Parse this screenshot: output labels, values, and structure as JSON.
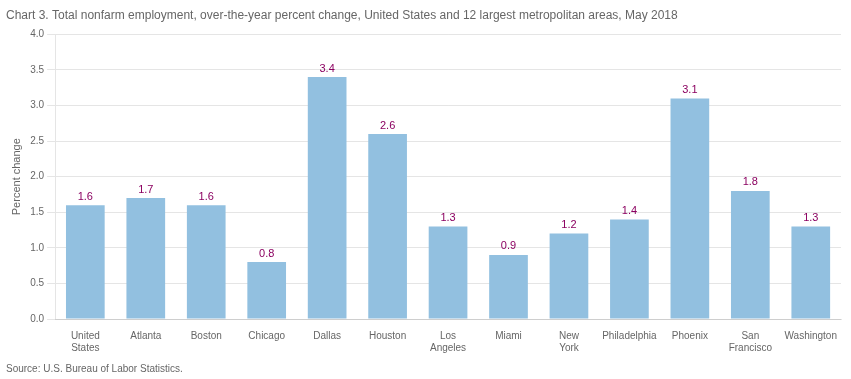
{
  "chart_data": {
    "type": "bar",
    "title": "Chart 3. Total nonfarm employment, over-the-year percent change, United States and 12 largest metropolitan areas, May 2018",
    "ylabel": "Percent change",
    "source": "Source: U.S. Bureau of Labor Statistics.",
    "categories": [
      "United\nStates",
      "Atlanta",
      "Boston",
      "Chicago",
      "Dallas",
      "Houston",
      "Los\nAngeles",
      "Miami",
      "New\nYork",
      "Philadelphia",
      "Phoenix",
      "San\nFrancisco",
      "Washington"
    ],
    "values": [
      1.6,
      1.7,
      1.6,
      0.8,
      3.4,
      2.6,
      1.3,
      0.9,
      1.2,
      1.4,
      3.1,
      1.8,
      1.3
    ],
    "color": "#92c0e0",
    "ylim": [
      0,
      4.0
    ],
    "yticks": [
      {
        "value": 0.0,
        "label": "0.0"
      },
      0.5,
      {
        "value": 1.0,
        "label": "1.0"
      },
      1.5,
      {
        "value": 2.0,
        "label": "2.0"
      },
      2.5,
      {
        "value": 3.0,
        "label": "3.0"
      },
      3.5,
      {
        "value": 4.0,
        "label": "4.0"
      }
    ],
    "grid": true,
    "data_labels": true
  }
}
